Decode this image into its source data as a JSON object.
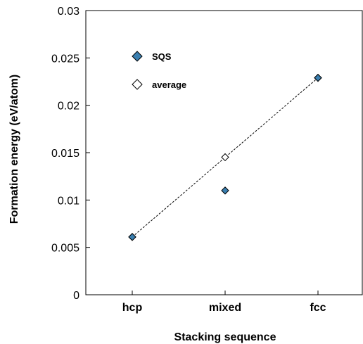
{
  "chart_data": {
    "type": "scatter",
    "title": "",
    "xlabel": "Stacking sequence",
    "ylabel": "Formation energy  (eV/atom)",
    "categories": [
      "hcp",
      "mixed",
      "fcc"
    ],
    "ylim": [
      0,
      0.03
    ],
    "yticks": [
      "0",
      "0.005",
      "0.01",
      "0.015",
      "0.02",
      "0.025",
      "0.03"
    ],
    "series": [
      {
        "name": "SQS",
        "marker": "filled-diamond",
        "color": "#3a7fb0",
        "values": [
          0.0061,
          0.011,
          0.0229
        ]
      },
      {
        "name": "average",
        "marker": "open-diamond",
        "color": "#ffffff",
        "values": [
          0.0061,
          0.01452,
          0.0229
        ]
      }
    ],
    "trendline": {
      "style": "dashed",
      "color": "#000000",
      "from": [
        0,
        0.0061
      ],
      "to": [
        2,
        0.0229
      ]
    },
    "legend_position": "top-left",
    "grid": false
  }
}
